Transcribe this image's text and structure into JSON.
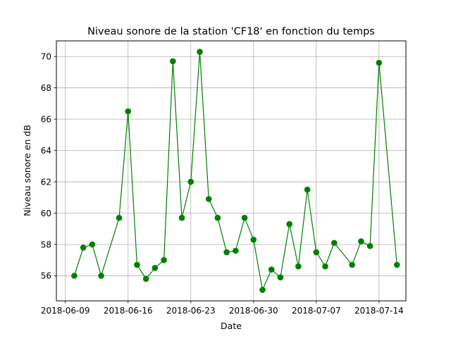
{
  "chart_data": {
    "type": "line",
    "title": "Niveau sonore de la station 'CF18' en fonction du temps",
    "xlabel": "Date",
    "ylabel": "Niveau sonore en dB",
    "x_ticks": [
      "2018-06-09",
      "2018-06-16",
      "2018-06-23",
      "2018-06-30",
      "2018-07-07",
      "2018-07-14"
    ],
    "y_ticks": [
      56,
      58,
      60,
      62,
      64,
      66,
      68,
      70
    ],
    "xlim": [
      "2018-06-08",
      "2018-07-17"
    ],
    "ylim": [
      54.4,
      71.0
    ],
    "grid": true,
    "series": [
      {
        "name": "",
        "color": "#008000",
        "marker": "circle",
        "points": [
          {
            "x": "2018-06-10",
            "y": 56.0
          },
          {
            "x": "2018-06-11",
            "y": 57.8
          },
          {
            "x": "2018-06-12",
            "y": 58.0
          },
          {
            "x": "2018-06-13",
            "y": 56.0
          },
          {
            "x": "2018-06-15",
            "y": 59.7
          },
          {
            "x": "2018-06-16",
            "y": 66.5
          },
          {
            "x": "2018-06-17",
            "y": 56.7
          },
          {
            "x": "2018-06-18",
            "y": 55.8
          },
          {
            "x": "2018-06-19",
            "y": 56.5
          },
          {
            "x": "2018-06-20",
            "y": 57.0
          },
          {
            "x": "2018-06-21",
            "y": 69.7
          },
          {
            "x": "2018-06-22",
            "y": 59.7
          },
          {
            "x": "2018-06-23",
            "y": 62.0
          },
          {
            "x": "2018-06-24",
            "y": 70.3
          },
          {
            "x": "2018-06-25",
            "y": 60.9
          },
          {
            "x": "2018-06-26",
            "y": 59.7
          },
          {
            "x": "2018-06-27",
            "y": 57.5
          },
          {
            "x": "2018-06-28",
            "y": 57.6
          },
          {
            "x": "2018-06-29",
            "y": 59.7
          },
          {
            "x": "2018-06-30",
            "y": 58.3
          },
          {
            "x": "2018-07-01",
            "y": 55.1
          },
          {
            "x": "2018-07-02",
            "y": 56.4
          },
          {
            "x": "2018-07-03",
            "y": 55.9
          },
          {
            "x": "2018-07-04",
            "y": 59.3
          },
          {
            "x": "2018-07-05",
            "y": 56.6
          },
          {
            "x": "2018-07-06",
            "y": 61.5
          },
          {
            "x": "2018-07-07",
            "y": 57.5
          },
          {
            "x": "2018-07-08",
            "y": 56.6
          },
          {
            "x": "2018-07-09",
            "y": 58.1
          },
          {
            "x": "2018-07-11",
            "y": 56.7
          },
          {
            "x": "2018-07-12",
            "y": 58.2
          },
          {
            "x": "2018-07-13",
            "y": 57.9
          },
          {
            "x": "2018-07-14",
            "y": 69.6
          },
          {
            "x": "2018-07-16",
            "y": 56.7
          }
        ]
      }
    ]
  }
}
